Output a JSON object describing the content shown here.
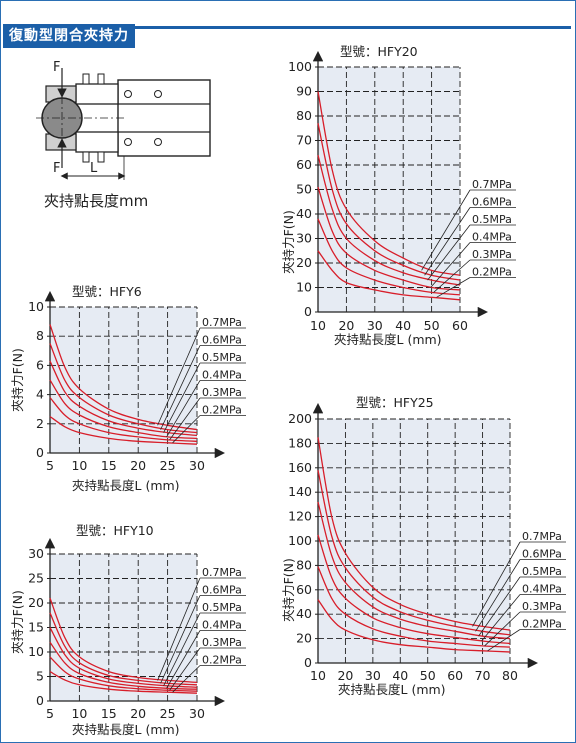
{
  "section_title": "復動型閉合夾持力",
  "diagram": {
    "force_label": "F",
    "length_label": "L",
    "caption": "夾持點長度mm"
  },
  "colors": {
    "accent": "#1b5fa8",
    "curve": "#d81e2a",
    "plot_bg": "#e6ebf3",
    "grid": "#222222"
  },
  "chart_data": [
    {
      "id": "hfy20",
      "type": "line",
      "title": "型號：HFY20",
      "xlabel": "夾持點長度L (mm)",
      "ylabel": "夾持力F(N)",
      "x": [
        10,
        15,
        20,
        30,
        40,
        50,
        60
      ],
      "xticks": [
        10,
        20,
        30,
        40,
        50,
        60
      ],
      "yticks": [
        0,
        10,
        20,
        30,
        40,
        50,
        60,
        70,
        80,
        90,
        100
      ],
      "xlim": [
        10,
        60
      ],
      "ylim": [
        0,
        100
      ],
      "grid": true,
      "series": [
        {
          "name": "0.7MPa",
          "values": [
            90,
            58,
            42,
            29,
            22,
            17,
            15
          ]
        },
        {
          "name": "0.6MPa",
          "values": [
            77,
            50,
            36,
            25,
            19,
            15,
            13
          ]
        },
        {
          "name": "0.5MPa",
          "values": [
            64,
            42,
            30,
            21,
            16,
            13,
            11
          ]
        },
        {
          "name": "0.4MPa",
          "values": [
            51,
            33,
            24,
            17,
            13,
            10,
            9
          ]
        },
        {
          "name": "0.3MPa",
          "values": [
            38,
            25,
            18,
            13,
            10,
            8,
            7
          ]
        },
        {
          "name": "0.2MPa",
          "values": [
            25,
            17,
            12,
            9,
            7,
            6,
            5
          ]
        }
      ]
    },
    {
      "id": "hfy6",
      "type": "line",
      "title": "型號：HFY6",
      "xlabel": "夾持點長度L (mm)",
      "ylabel": "夾持力F(N)",
      "x": [
        5,
        7.5,
        10,
        15,
        20,
        25,
        30
      ],
      "xticks": [
        5,
        10,
        15,
        20,
        25,
        30
      ],
      "yticks": [
        0,
        2,
        4,
        6,
        8,
        10
      ],
      "xlim": [
        5,
        30
      ],
      "ylim": [
        0,
        10
      ],
      "grid": true,
      "series": [
        {
          "name": "0.7MPa",
          "values": [
            8.8,
            5.9,
            4.4,
            3.0,
            2.3,
            1.9,
            1.6
          ]
        },
        {
          "name": "0.6MPa",
          "values": [
            7.5,
            5.0,
            3.8,
            2.6,
            2.0,
            1.6,
            1.4
          ]
        },
        {
          "name": "0.5MPa",
          "values": [
            6.3,
            4.2,
            3.2,
            2.2,
            1.7,
            1.4,
            1.2
          ]
        },
        {
          "name": "0.4MPa",
          "values": [
            5.0,
            3.4,
            2.6,
            1.8,
            1.4,
            1.1,
            1.0
          ]
        },
        {
          "name": "0.3MPa",
          "values": [
            3.8,
            2.6,
            2.0,
            1.4,
            1.1,
            0.9,
            0.8
          ]
        },
        {
          "name": "0.2MPa",
          "values": [
            2.5,
            1.8,
            1.4,
            1.0,
            0.8,
            0.7,
            0.6
          ]
        }
      ]
    },
    {
      "id": "hfy25",
      "type": "line",
      "title": "型號：HFY25",
      "xlabel": "夾持點長度L (mm)",
      "ylabel": "夾持力F(N)",
      "x": [
        10,
        15,
        20,
        30,
        40,
        50,
        60,
        70,
        80
      ],
      "xticks": [
        10,
        20,
        30,
        40,
        50,
        60,
        70,
        80
      ],
      "yticks": [
        0,
        20,
        40,
        60,
        80,
        100,
        120,
        140,
        160,
        180,
        200
      ],
      "xlim": [
        10,
        80
      ],
      "ylim": [
        0,
        200
      ],
      "grid": true,
      "series": [
        {
          "name": "0.7MPa",
          "values": [
            185,
            120,
            90,
            62,
            48,
            40,
            34,
            30,
            27
          ]
        },
        {
          "name": "0.6MPa",
          "values": [
            158,
            104,
            78,
            54,
            42,
            35,
            30,
            26,
            23
          ]
        },
        {
          "name": "0.5MPa",
          "values": [
            132,
            88,
            66,
            46,
            36,
            30,
            26,
            22,
            20
          ]
        },
        {
          "name": "0.4MPa",
          "values": [
            105,
            70,
            53,
            37,
            29,
            24,
            21,
            18,
            16
          ]
        },
        {
          "name": "0.3MPa",
          "values": [
            79,
            53,
            40,
            28,
            22,
            18,
            16,
            14,
            13
          ]
        },
        {
          "name": "0.2MPa",
          "values": [
            52,
            36,
            27,
            19,
            15,
            13,
            11,
            10,
            9
          ]
        }
      ]
    },
    {
      "id": "hfy10",
      "type": "line",
      "title": "型號：HFY10",
      "xlabel": "夾持點長度L (mm)",
      "ylabel": "夾持力F(N)",
      "x": [
        5,
        7.5,
        10,
        15,
        20,
        25,
        30
      ],
      "xticks": [
        5,
        10,
        15,
        20,
        25,
        30
      ],
      "yticks": [
        0,
        5,
        10,
        15,
        20,
        25,
        30
      ],
      "xlim": [
        5,
        30
      ],
      "ylim": [
        0,
        30
      ],
      "grid": true,
      "series": [
        {
          "name": "0.7MPa",
          "values": [
            21,
            13,
            9,
            6,
            4.8,
            4.2,
            3.8
          ]
        },
        {
          "name": "0.6MPa",
          "values": [
            18,
            11.2,
            7.8,
            5.2,
            4.2,
            3.6,
            3.3
          ]
        },
        {
          "name": "0.5MPa",
          "values": [
            15,
            9.5,
            6.7,
            4.5,
            3.6,
            3.1,
            2.8
          ]
        },
        {
          "name": "0.4MPa",
          "values": [
            12,
            7.8,
            5.6,
            3.8,
            3.0,
            2.6,
            2.4
          ]
        },
        {
          "name": "0.3MPa",
          "values": [
            9,
            6.0,
            4.5,
            3.1,
            2.5,
            2.2,
            2.0
          ]
        },
        {
          "name": "0.2MPa",
          "values": [
            6,
            4.3,
            3.3,
            2.4,
            2.0,
            1.8,
            1.6
          ]
        }
      ]
    }
  ]
}
